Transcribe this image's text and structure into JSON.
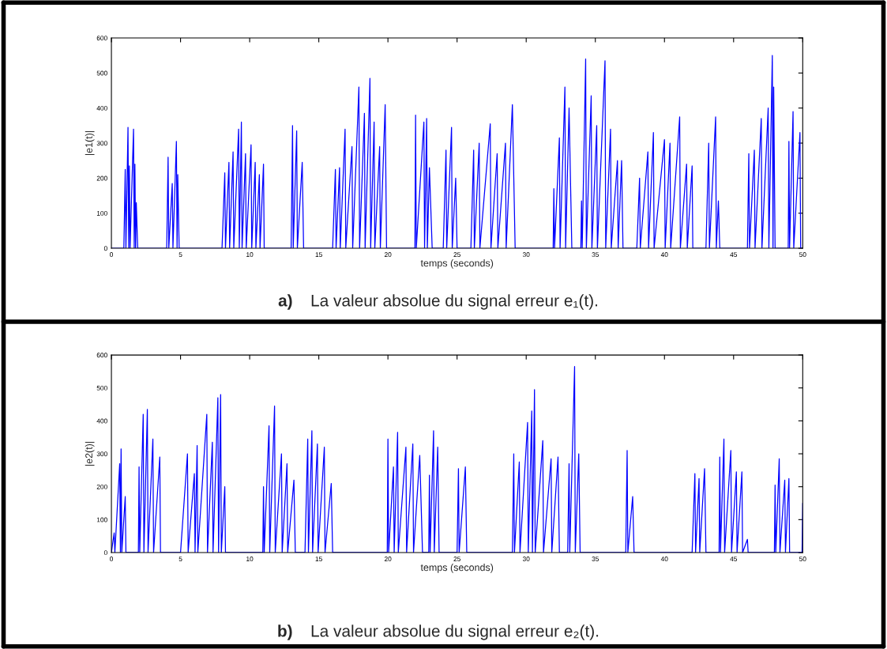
{
  "chart_data": [
    {
      "type": "line",
      "xlabel": "temps (seconds)",
      "ylabel": "|e1(t)|",
      "annotations": [
        "a)",
        "La valeur absolue du signal erreur e₁(t)."
      ],
      "xlim": [
        0,
        50
      ],
      "ylim": [
        0,
        600
      ],
      "xticks": [
        0,
        5,
        10,
        15,
        20,
        25,
        30,
        35,
        40,
        45,
        50
      ],
      "yticks": [
        0,
        100,
        200,
        300,
        400,
        500,
        600
      ],
      "grid": false,
      "legend": false,
      "series": [
        {
          "color": "#0000ff",
          "x": [
            0,
            0.9,
            1.0,
            1.05,
            1.2,
            1.25,
            1.3,
            1.35,
            1.6,
            1.65,
            1.7,
            1.75,
            1.8,
            1.9,
            4.0,
            4.1,
            4.15,
            4.4,
            4.45,
            4.7,
            4.75,
            4.8,
            4.9,
            8.0,
            8.2,
            8.25,
            8.5,
            8.55,
            8.8,
            8.85,
            9.2,
            9.25,
            9.4,
            9.45,
            9.7,
            9.75,
            10.1,
            10.15,
            10.4,
            10.45,
            10.7,
            10.75,
            11.0,
            11.05,
            13.0,
            13.1,
            13.15,
            13.4,
            13.45,
            13.8,
            13.9,
            16.0,
            16.2,
            16.25,
            16.5,
            16.55,
            16.9,
            16.95,
            17.4,
            17.45,
            17.9,
            17.95,
            18.3,
            18.35,
            18.7,
            18.75,
            19.0,
            19.05,
            19.4,
            19.45,
            19.8,
            19.9,
            21.95,
            22.0,
            22.05,
            22.6,
            22.65,
            22.8,
            22.85,
            23.0,
            23.2,
            24.0,
            24.2,
            24.25,
            24.6,
            24.65,
            24.9,
            25.0,
            26.0,
            26.2,
            26.25,
            26.6,
            26.65,
            27.4,
            27.45,
            27.9,
            27.95,
            28.5,
            28.55,
            29.0,
            29.2,
            31.95,
            32.0,
            32.05,
            32.4,
            32.45,
            32.8,
            32.85,
            33.1,
            33.3,
            33.95,
            34.0,
            34.05,
            34.3,
            34.35,
            34.7,
            34.75,
            35.1,
            35.15,
            35.7,
            35.75,
            36.1,
            36.15,
            36.6,
            36.65,
            36.9,
            37.0,
            38.0,
            38.2,
            38.25,
            38.8,
            38.85,
            39.2,
            39.25,
            40.0,
            40.05,
            40.4,
            40.45,
            41.1,
            41.15,
            41.6,
            41.65,
            42.0,
            42.05,
            43.0,
            43.2,
            43.25,
            43.7,
            43.75,
            43.9,
            44.0,
            46.0,
            46.1,
            46.15,
            46.5,
            46.55,
            47.0,
            47.05,
            47.5,
            47.55,
            47.8,
            47.85,
            47.9,
            48.0,
            48.95,
            49.0,
            49.05,
            49.3,
            49.35,
            49.8,
            49.85,
            50
          ],
          "values": [
            0,
            0,
            225,
            0,
            345,
            0,
            235,
            0,
            340,
            0,
            240,
            0,
            130,
            0,
            0,
            260,
            0,
            185,
            0,
            305,
            0,
            210,
            0,
            0,
            215,
            0,
            245,
            0,
            275,
            0,
            340,
            0,
            360,
            0,
            270,
            0,
            295,
            0,
            245,
            0,
            210,
            0,
            240,
            0,
            0,
            350,
            0,
            335,
            0,
            245,
            0,
            0,
            225,
            0,
            230,
            0,
            340,
            0,
            290,
            0,
            460,
            0,
            385,
            0,
            485,
            0,
            360,
            0,
            290,
            0,
            410,
            0,
            0,
            380,
            0,
            360,
            0,
            370,
            0,
            230,
            0,
            0,
            280,
            0,
            345,
            0,
            200,
            0,
            0,
            280,
            0,
            300,
            0,
            355,
            0,
            270,
            0,
            300,
            0,
            410,
            0,
            0,
            170,
            0,
            315,
            0,
            460,
            0,
            400,
            0,
            0,
            135,
            0,
            540,
            0,
            435,
            0,
            350,
            0,
            535,
            0,
            340,
            0,
            250,
            0,
            250,
            0,
            0,
            200,
            0,
            275,
            0,
            330,
            0,
            310,
            0,
            300,
            0,
            375,
            0,
            240,
            0,
            235,
            0,
            0,
            300,
            0,
            375,
            0,
            135,
            0,
            0,
            270,
            0,
            280,
            0,
            370,
            0,
            400,
            0,
            550,
            0,
            460,
            0,
            0,
            305,
            0,
            390,
            0,
            330,
            0,
            0
          ]
        }
      ]
    },
    {
      "type": "line",
      "xlabel": "temps (seconds)",
      "ylabel": "|e2(t)|",
      "annotations": [
        "b)",
        "La valeur absolue du signal erreur e₂(t)."
      ],
      "xlim": [
        0,
        50
      ],
      "ylim": [
        0,
        600
      ],
      "xticks": [
        0,
        5,
        10,
        15,
        20,
        25,
        30,
        35,
        40,
        45,
        50
      ],
      "yticks": [
        0,
        100,
        200,
        300,
        400,
        500,
        600
      ],
      "grid": false,
      "legend": false,
      "series": [
        {
          "color": "#0000ff",
          "x": [
            0,
            0.2,
            0.25,
            0.6,
            0.65,
            0.7,
            0.75,
            1.0,
            1.05,
            1.95,
            2.0,
            2.05,
            2.3,
            2.35,
            2.6,
            2.65,
            3.0,
            3.05,
            3.5,
            3.55,
            4.0,
            5.0,
            5.5,
            5.55,
            6.0,
            6.05,
            6.2,
            6.25,
            6.9,
            6.95,
            7.3,
            7.35,
            7.7,
            7.75,
            7.9,
            7.95,
            8.2,
            8.25,
            10.95,
            11.0,
            11.05,
            11.4,
            11.45,
            11.8,
            11.85,
            12.3,
            12.35,
            12.7,
            12.75,
            13.2,
            13.3,
            14.0,
            14.2,
            14.25,
            14.5,
            14.55,
            14.9,
            14.95,
            15.4,
            15.45,
            15.9,
            16.0,
            19.95,
            20.0,
            20.05,
            20.4,
            20.45,
            20.7,
            20.75,
            21.3,
            21.35,
            21.8,
            21.85,
            22.3,
            22.5,
            22.95,
            23.0,
            23.05,
            23.3,
            23.35,
            23.6,
            23.7,
            25.0,
            25.1,
            25.15,
            25.6,
            25.7,
            29.0,
            29.1,
            29.15,
            29.5,
            29.55,
            30.1,
            30.15,
            30.4,
            30.45,
            30.6,
            30.65,
            31.2,
            31.25,
            31.8,
            31.85,
            32.3,
            32.4,
            33.0,
            33.1,
            33.15,
            33.5,
            33.55,
            33.8,
            33.9,
            37.2,
            37.3,
            37.35,
            37.7,
            37.8,
            42.0,
            42.2,
            42.25,
            42.5,
            42.55,
            42.9,
            43.0,
            43.95,
            44.0,
            44.05,
            44.3,
            44.35,
            44.8,
            44.85,
            45.2,
            45.25,
            45.6,
            45.65,
            46.0,
            46.05,
            47.95,
            48.0,
            48.05,
            48.3,
            48.35,
            48.7,
            48.75,
            49.0,
            49.05,
            49.95,
            50
          ],
          "values": [
            0,
            60,
            0,
            270,
            0,
            315,
            0,
            170,
            0,
            0,
            260,
            0,
            420,
            0,
            435,
            0,
            345,
            0,
            290,
            0,
            0,
            0,
            300,
            0,
            240,
            0,
            325,
            0,
            420,
            0,
            335,
            0,
            470,
            0,
            480,
            0,
            200,
            0,
            0,
            200,
            0,
            385,
            0,
            445,
            0,
            300,
            0,
            270,
            0,
            220,
            0,
            0,
            345,
            0,
            370,
            0,
            330,
            0,
            320,
            0,
            210,
            0,
            0,
            345,
            0,
            260,
            0,
            365,
            0,
            320,
            0,
            330,
            0,
            295,
            0,
            0,
            235,
            0,
            370,
            0,
            320,
            0,
            0,
            255,
            0,
            260,
            0,
            0,
            300,
            0,
            275,
            0,
            395,
            0,
            430,
            0,
            495,
            0,
            340,
            0,
            285,
            0,
            290,
            0,
            0,
            270,
            0,
            565,
            0,
            300,
            0,
            0,
            310,
            0,
            170,
            0,
            0,
            240,
            0,
            225,
            0,
            255,
            0,
            0,
            290,
            0,
            345,
            0,
            310,
            0,
            245,
            0,
            245,
            0,
            40,
            0,
            0,
            205,
            0,
            285,
            0,
            220,
            0,
            225,
            0,
            0,
            150
          ]
        }
      ]
    }
  ]
}
